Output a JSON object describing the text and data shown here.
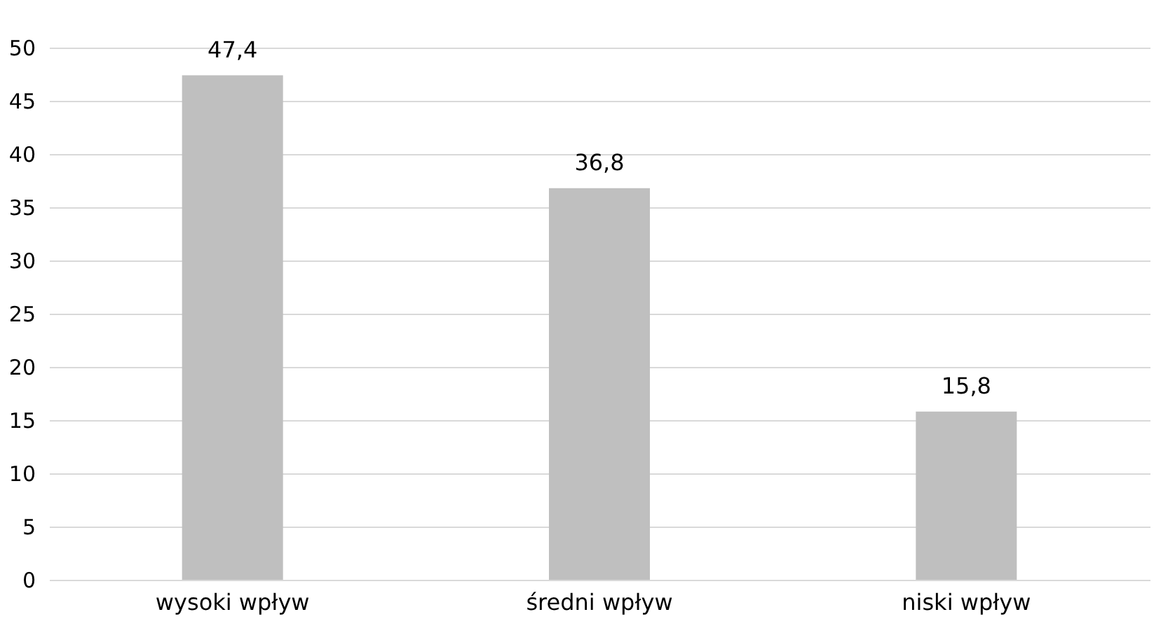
{
  "chart_data": {
    "type": "bar",
    "categories": [
      "wysoki wpływ",
      "średni wpływ",
      "niski wpływ"
    ],
    "values": [
      47.4,
      36.8,
      15.8
    ],
    "value_labels": [
      "47,4",
      "36,8",
      "15,8"
    ],
    "color": "#bfbfbf",
    "ylim": [
      0,
      50
    ],
    "yticks": [
      0,
      5,
      10,
      15,
      20,
      25,
      30,
      35,
      40,
      45,
      50
    ],
    "grid": "y"
  }
}
